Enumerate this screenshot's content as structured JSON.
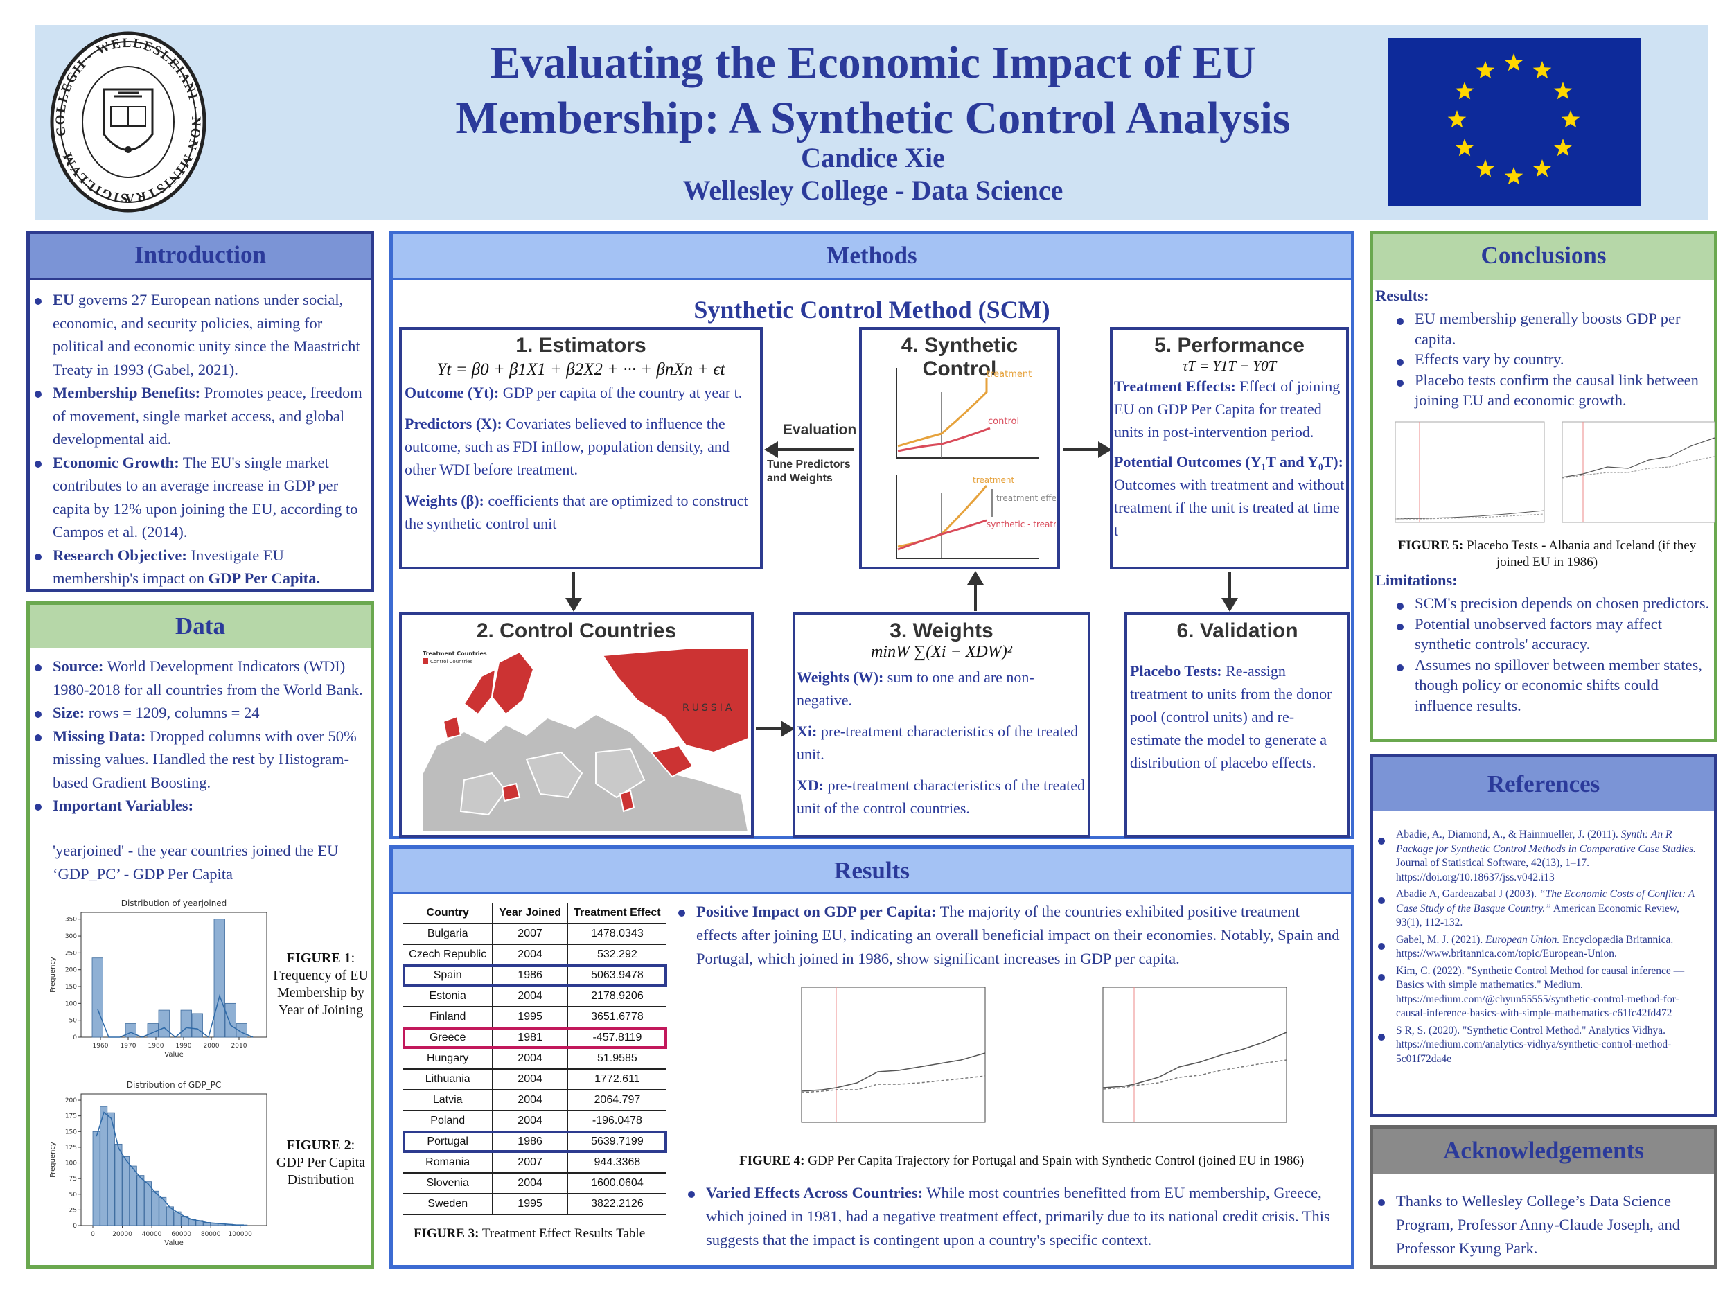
{
  "header": {
    "title_line1": "Evaluating the Economic Impact of EU",
    "title_line2": "Membership: A Synthetic Control Analysis",
    "author": "Candice Xie",
    "affiliation": "Wellesley College - Data Science",
    "seal_text": "SIGILLVM · COLLEGII · WELLESLEIANI · NON MINISTRARI SED MINISTRARE"
  },
  "introduction": {
    "title": "Introduction",
    "items": [
      {
        "lead": "EU",
        "text": " governs 27 European nations under social, economic, and security policies, aiming for political and economic unity since the Maastricht Treaty in 1993 (Gabel, 2021)."
      },
      {
        "lead": "Membership Benefits:",
        "text": " Promotes peace, freedom of movement, single market access, and global developmental aid."
      },
      {
        "lead": "Economic Growth:",
        "text": " The EU's single market contributes to an average increase in GDP per capita by 12% upon joining the EU, according to Campos et al. (2014)."
      },
      {
        "lead": "Research Objective:",
        "text": " Investigate EU membership's impact on ",
        "tail": "GDP Per Capita."
      }
    ]
  },
  "data": {
    "title": "Data",
    "items": [
      {
        "lead": "Source:",
        "text": " World Development Indicators (WDI) 1980-2018 for all countries from the World Bank."
      },
      {
        "lead": "Size:",
        "text": " rows = 1209, columns = 24"
      },
      {
        "lead": "Missing Data:",
        "text": " Dropped columns with over 50% missing values. Handled the rest by Histogram-based Gradient Boosting."
      },
      {
        "lead": "Important Variables:",
        "text": ""
      }
    ],
    "var1": "'yearjoined' - the year countries joined the EU",
    "var2": "‘GDP_PC’ - GDP Per Capita",
    "fig1_label": "FIGURE 1",
    "fig1_text": ": Frequency of EU Membership by Year of Joining",
    "fig2_label": "FIGURE 2",
    "fig2_text": ": GDP Per Capita Distribution"
  },
  "chart_data": [
    {
      "type": "bar",
      "title": "Distribution of yearjoined",
      "xlabel": "Value",
      "ylabel": "Frequency",
      "xticks": [
        "1960",
        "1970",
        "1980",
        "1990",
        "2000",
        "2010"
      ],
      "yticks": [
        0,
        50,
        100,
        150,
        200,
        250,
        300,
        350
      ],
      "ylim": [
        0,
        370
      ],
      "xlim": [
        1953,
        2020
      ],
      "bin_starts": [
        1957,
        1961,
        1965,
        1969,
        1973,
        1977,
        1981,
        1985,
        1989,
        1993,
        1997,
        2001,
        2005,
        2009,
        2013
      ],
      "bin_width": 4,
      "values": [
        235,
        0,
        0,
        40,
        0,
        40,
        80,
        0,
        80,
        70,
        0,
        350,
        100,
        40,
        0
      ]
    },
    {
      "type": "bar",
      "title": "Distribution of GDP_PC",
      "xlabel": "Value",
      "ylabel": "Frequency",
      "xticks": [
        "0",
        "20000",
        "40000",
        "60000",
        "80000",
        "100000"
      ],
      "yticks": [
        0,
        25,
        50,
        75,
        100,
        125,
        150,
        175,
        200
      ],
      "ylim": [
        0,
        210
      ],
      "xlim": [
        -8000,
        118000
      ],
      "bin_width": 5000,
      "values": [
        150,
        190,
        180,
        130,
        110,
        95,
        80,
        70,
        55,
        45,
        30,
        22,
        15,
        10,
        8,
        5,
        4,
        3,
        2,
        1,
        1
      ]
    },
    {
      "type": "table",
      "title": "Treatment Effect Results Table",
      "columns": [
        "Country",
        "Year Joined",
        "Treatment Effect"
      ],
      "rows": [
        [
          "Bulgaria",
          "2007",
          "1478.0343"
        ],
        [
          "Czech Republic",
          "2004",
          "532.292"
        ],
        [
          "Spain",
          "1986",
          "5063.9478"
        ],
        [
          "Estonia",
          "2004",
          "2178.9206"
        ],
        [
          "Finland",
          "1995",
          "3651.6778"
        ],
        [
          "Greece",
          "1981",
          "-457.8119"
        ],
        [
          "Hungary",
          "2004",
          "51.9585"
        ],
        [
          "Lithuania",
          "2004",
          "1772.611"
        ],
        [
          "Latvia",
          "2004",
          "2064.797"
        ],
        [
          "Poland",
          "2004",
          "-196.0478"
        ],
        [
          "Portugal",
          "1986",
          "5639.7199"
        ],
        [
          "Romania",
          "2007",
          "944.3368"
        ],
        [
          "Slovenia",
          "2004",
          "1600.0604"
        ],
        [
          "Sweden",
          "1995",
          "3822.2126"
        ]
      ],
      "highlight_blue": [
        "Spain",
        "Portugal"
      ],
      "highlight_red": [
        "Greece"
      ]
    }
  ],
  "methods": {
    "title": "Methods",
    "subtitle": "Synthetic Control Method (SCM)",
    "estimators": {
      "heading": "1.  Estimators",
      "formula": "Yt = β0 + β1X1 + β2X2 + ··· + βnXn + ϵt",
      "outcome_lead": "Outcome (Yt):",
      "outcome_text": " GDP per capita of the country at year t.",
      "predictors_lead": "Predictors (X):",
      "predictors_text": " Covariates believed to influence the outcome, such as FDI inflow, population density, and other WDI before treatment.",
      "weights_lead": "Weights (β):",
      "weights_text": " coefficients that are optimized to construct the synthetic control unit"
    },
    "evaluation_label": "Evaluation",
    "tune_label": "Tune Predictors and Weights",
    "synthetic": {
      "heading": "4. Synthetic Control",
      "top_treatment": "treatment",
      "top_control": "control",
      "bottom_treatment": "treatment",
      "bottom_effect": "treatment effect",
      "bottom_synthetic": "synthetic - treatment"
    },
    "performance": {
      "heading": "5. Performance",
      "formula": "τT = Y1T − Y0T",
      "te_lead": "Treatment Effects:",
      "te_text": " Effect of joining EU on GDP Per Capita for treated units in post-intervention period.",
      "po_lead": "Potential Outcomes (Y₁T  and Y₀T):",
      "po_text": " Outcomes with treatment and without treatment if the unit is treated at time t"
    },
    "control": {
      "heading": "2. Control Countries",
      "legend_title": "Treatment Countries",
      "legend_item": "Control Countries",
      "russia": "RUSSIA"
    },
    "weights": {
      "heading": "3. Weights",
      "formula": "minW ∑(Xi − XDW)²",
      "w_lead": "Weights (W):",
      "w_text": " sum to one and are non-negative.",
      "xi_lead": "Xi:",
      "xi_text": " pre-treatment characteristics of the treated unit.",
      "xd_lead": "XD:",
      "xd_text": " pre-treatment characteristics of the treated unit of the control countries."
    },
    "validation": {
      "heading": "6. Validation",
      "lead": "Placebo Tests:",
      "text": " Re-assign treatment to units from the donor pool (control units) and re-estimate the model to generate a distribution of placebo effects."
    }
  },
  "results": {
    "title": "Results",
    "fig3_label": "FIGURE 3:",
    "fig3_text": " Treatment Effect Results Table",
    "bullet1_lead": "Positive Impact on GDP per Capita:",
    "bullet1_text": " The majority of the countries exhibited positive treatment effects after joining EU, indicating an overall beneficial impact on their economies. Notably, Spain and Portugal, which joined in 1986, show significant increases in GDP per capita.",
    "fig4_label": "FIGURE 4:",
    "fig4_text": " GDP Per Capita Trajectory for Portugal and Spain with Synthetic Control (joined EU in 1986)",
    "bullet2_lead": "Varied Effects Across Countries:",
    "bullet2_text": " While most countries benefitted from EU membership, Greece, which joined in 1981, had a negative treatment effect, primarily due to its national credit crisis. This suggests that the impact is contingent upon a country's specific context."
  },
  "conclusions": {
    "title": "Conclusions",
    "results_label": "Results:",
    "results_items": [
      "EU membership generally boosts GDP per capita.",
      "Effects vary by country.",
      "Placebo tests confirm the causal link between joining EU and economic growth."
    ],
    "fig5_label": "FIGURE 5:",
    "fig5_text": " Placebo Tests - Albania and Iceland (if they joined EU in 1986)",
    "limitations_label": "Limitations:",
    "limitations_items": [
      "SCM's precision depends on chosen predictors.",
      "Potential unobserved factors may affect synthetic controls' accuracy.",
      "Assumes no spillover between member states, though policy or economic shifts could influence results."
    ]
  },
  "references": {
    "title": "References",
    "items": [
      {
        "a": "Abadie, A., Diamond, A., & Hainmueller, J. (2011). ",
        "i": "Synth: An R Package for Synthetic Control Methods in Comparative Case Studies.",
        "b": " Journal of Statistical Software, 42(13), 1–17. https://doi.org/10.18637/jss.v042.i13"
      },
      {
        "a": "Abadie A, Gardeazabal J (2003). ",
        "i": "“The Economic Costs of Conflict: A Case Study of the Basque Country.”",
        "b": " American Economic Review, 93(1), 112-132."
      },
      {
        "a": "Gabel, M. J. (2021). ",
        "i": "European Union.",
        "b": " Encyclopædia Britannica. https://www.britannica.com/topic/European-Union."
      },
      {
        "a": "Kim, C. (2022). \"Synthetic Control Method for causal inference — Basics with simple mathematics.\" Medium. https://medium.com/@chyun55555/synthetic-control-method-for-causal-inference-basics-with-simple-mathematics-c61fc42fd472",
        "i": "",
        "b": ""
      },
      {
        "a": "S R, S. (2020). \"Synthetic Control Method.\" Analytics Vidhya. https://medium.com/analytics-vidhya/synthetic-control-method-5c01f72da4e",
        "i": "",
        "b": ""
      }
    ]
  },
  "acknowledgements": {
    "title": "Acknowledgements",
    "text": "Thanks to Wellesley College’s Data Science Program, Professor Anny-Claude Joseph, and Professor Kyung Park."
  },
  "colors": {
    "navy": "#2d3b8f",
    "green": "#6aa84f",
    "header_bg": "#cfe2f3",
    "eu_blue": "#0d2a9a",
    "eu_star": "#ffd700",
    "map_red": "#cc3333"
  }
}
